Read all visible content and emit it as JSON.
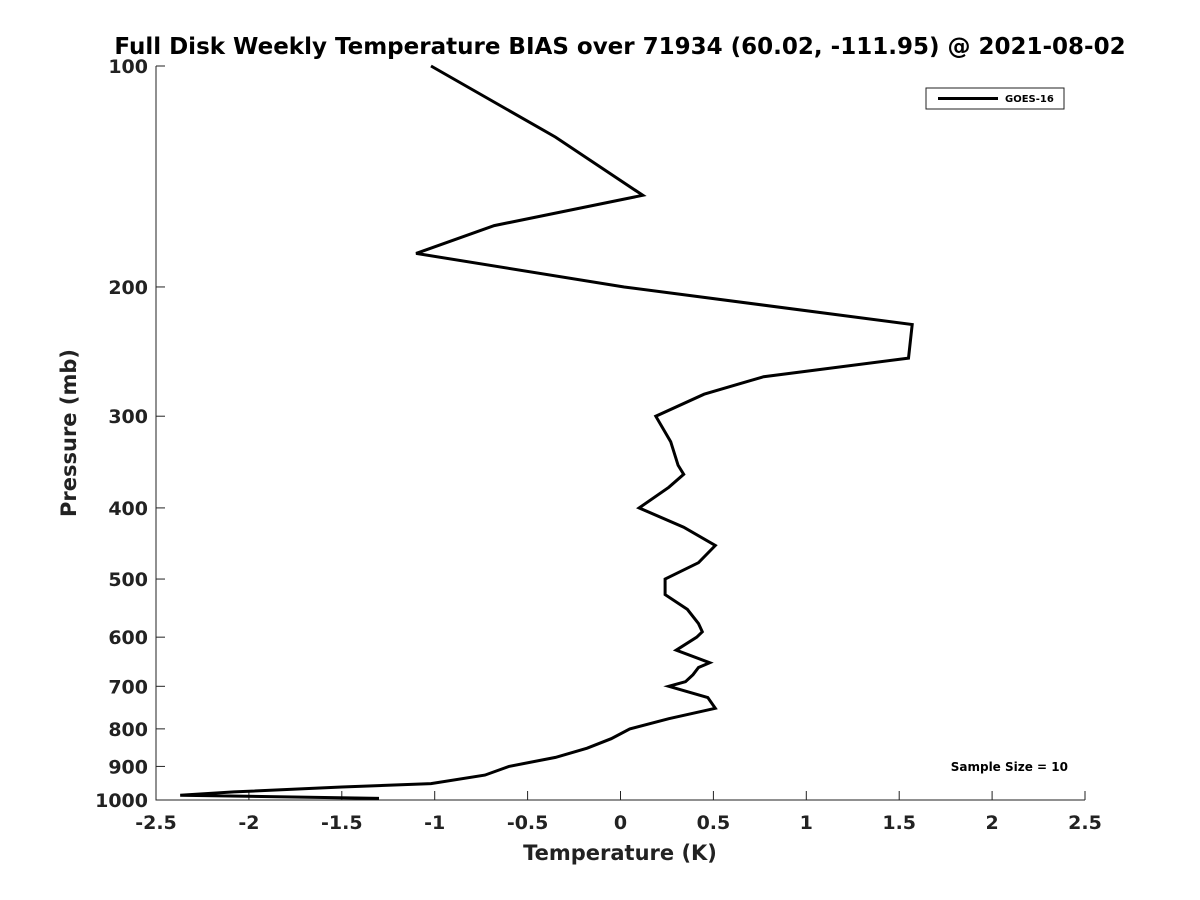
{
  "chart_data": {
    "type": "line",
    "title": "Full Disk Weekly Temperature BIAS over 71934 (60.02, -111.95) @ 2021-08-02",
    "xlabel": "Temperature (K)",
    "ylabel": "Pressure (mb)",
    "xlim": [
      -2.5,
      2.5
    ],
    "ylim": [
      100,
      1000
    ],
    "y_scale": "log",
    "y_reversed": true,
    "grid": false,
    "x_ticks": [
      -2.5,
      -2,
      -1.5,
      -1,
      -0.5,
      0,
      0.5,
      1,
      1.5,
      2,
      2.5
    ],
    "x_tick_labels": [
      "-2.5",
      "-2",
      "-1.5",
      "-1",
      "-0.5",
      "0",
      "0.5",
      "1",
      "1.5",
      "2",
      "2.5"
    ],
    "y_ticks": [
      100,
      200,
      300,
      400,
      500,
      600,
      700,
      800,
      900,
      1000
    ],
    "y_tick_labels": [
      "100",
      "200",
      "300",
      "400",
      "500",
      "600",
      "700",
      "800",
      "900",
      "1000"
    ],
    "legend": {
      "position": "top-right",
      "entries": [
        "GOES-16"
      ]
    },
    "annotation": "Sample Size = 10",
    "series": [
      {
        "name": "GOES-16",
        "color": "#000000",
        "points": [
          {
            "x": -1.02,
            "y": 100
          },
          {
            "x": -0.35,
            "y": 125
          },
          {
            "x": 0.12,
            "y": 150
          },
          {
            "x": -0.68,
            "y": 165
          },
          {
            "x": -1.1,
            "y": 180
          },
          {
            "x": 0.02,
            "y": 200
          },
          {
            "x": 1.57,
            "y": 225
          },
          {
            "x": 1.55,
            "y": 250
          },
          {
            "x": 0.77,
            "y": 265
          },
          {
            "x": 0.45,
            "y": 280
          },
          {
            "x": 0.19,
            "y": 300
          },
          {
            "x": 0.27,
            "y": 325
          },
          {
            "x": 0.31,
            "y": 350
          },
          {
            "x": 0.34,
            "y": 360
          },
          {
            "x": 0.26,
            "y": 375
          },
          {
            "x": 0.1,
            "y": 400
          },
          {
            "x": 0.34,
            "y": 425
          },
          {
            "x": 0.51,
            "y": 450
          },
          {
            "x": 0.42,
            "y": 475
          },
          {
            "x": 0.24,
            "y": 500
          },
          {
            "x": 0.24,
            "y": 525
          },
          {
            "x": 0.36,
            "y": 550
          },
          {
            "x": 0.42,
            "y": 575
          },
          {
            "x": 0.44,
            "y": 590
          },
          {
            "x": 0.41,
            "y": 600
          },
          {
            "x": 0.3,
            "y": 625
          },
          {
            "x": 0.48,
            "y": 650
          },
          {
            "x": 0.42,
            "y": 660
          },
          {
            "x": 0.39,
            "y": 675
          },
          {
            "x": 0.35,
            "y": 690
          },
          {
            "x": 0.26,
            "y": 700
          },
          {
            "x": 0.47,
            "y": 725
          },
          {
            "x": 0.51,
            "y": 750
          },
          {
            "x": 0.26,
            "y": 775
          },
          {
            "x": 0.05,
            "y": 800
          },
          {
            "x": -0.05,
            "y": 825
          },
          {
            "x": -0.18,
            "y": 850
          },
          {
            "x": -0.35,
            "y": 875
          },
          {
            "x": -0.6,
            "y": 900
          },
          {
            "x": -0.73,
            "y": 925
          },
          {
            "x": -1.02,
            "y": 950
          },
          {
            "x": -1.5,
            "y": 960
          },
          {
            "x": -2.08,
            "y": 975
          },
          {
            "x": -2.37,
            "y": 985
          },
          {
            "x": -1.3,
            "y": 995
          }
        ]
      }
    ]
  }
}
